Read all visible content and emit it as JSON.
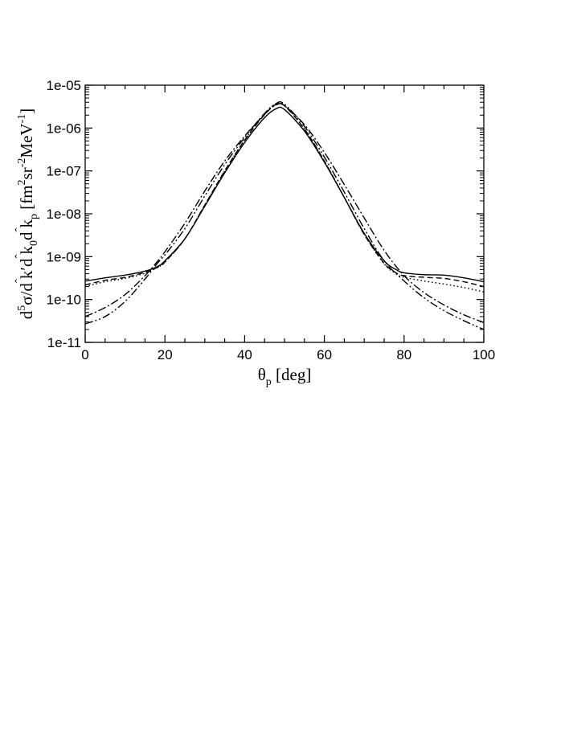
{
  "chart_data": {
    "type": "line",
    "xlabel": {
      "main": "θ",
      "sub": "p",
      "rest": " [deg]"
    },
    "ylabel_parts": [
      {
        "t": "d",
        "s": "n"
      },
      {
        "t": "5",
        "s": "sup"
      },
      {
        "t": "σ/d",
        "s": "n"
      },
      {
        "t": "ˆ",
        "s": "hat"
      },
      {
        "t": "k′d",
        "s": "n"
      },
      {
        "t": "ˆ",
        "s": "hat"
      },
      {
        "t": "k",
        "s": "n"
      },
      {
        "t": "0",
        "s": "sub"
      },
      {
        "t": "d",
        "s": "n"
      },
      {
        "t": "ˆ",
        "s": "hat"
      },
      {
        "t": "k",
        "s": "n"
      },
      {
        "t": "p",
        "s": "sub"
      },
      {
        "t": " [fm",
        "s": "n"
      },
      {
        "t": "2",
        "s": "sup"
      },
      {
        "t": "sr",
        "s": "n"
      },
      {
        "t": "-2",
        "s": "sup"
      },
      {
        "t": "MeV",
        "s": "n"
      },
      {
        "t": "-1",
        "s": "sup"
      },
      {
        "t": "]",
        "s": "n"
      }
    ],
    "xlim": [
      0,
      100
    ],
    "ylim": [
      1e-11,
      1e-05
    ],
    "yscale": "log",
    "x_ticks": [
      "0",
      "20",
      "40",
      "60",
      "80",
      "100"
    ],
    "y_ticks": [
      "1e-11",
      "1e-10",
      "1e-09",
      "1e-08",
      "1e-07",
      "1e-06",
      "1e-05"
    ],
    "grid": false,
    "series": [
      {
        "style": "solid",
        "points": [
          [
            0,
            2.7e-10
          ],
          [
            5,
            3.2e-10
          ],
          [
            10,
            3.7e-10
          ],
          [
            15,
            4.6e-10
          ],
          [
            18,
            5.8e-10
          ],
          [
            20,
            8e-10
          ],
          [
            25,
            2.6e-09
          ],
          [
            30,
            1.5e-08
          ],
          [
            35,
            9e-08
          ],
          [
            40,
            4.6e-07
          ],
          [
            45,
            1.75e-06
          ],
          [
            48,
            2.85e-06
          ],
          [
            50,
            2.7e-06
          ],
          [
            55,
            8.5e-07
          ],
          [
            60,
            1.6e-07
          ],
          [
            65,
            2.4e-08
          ],
          [
            70,
            3.5e-09
          ],
          [
            75,
            8e-10
          ],
          [
            78,
            5e-10
          ],
          [
            80,
            4.2e-10
          ],
          [
            85,
            3.8e-10
          ],
          [
            90,
            3.7e-10
          ],
          [
            95,
            3.2e-10
          ],
          [
            100,
            2.6e-10
          ]
        ]
      },
      {
        "style": "dashed",
        "points": [
          [
            0,
            2.2e-10
          ],
          [
            5,
            2.8e-10
          ],
          [
            10,
            3.3e-10
          ],
          [
            15,
            4.3e-10
          ],
          [
            18,
            5.6e-10
          ],
          [
            20,
            7.5e-10
          ],
          [
            25,
            2.6e-09
          ],
          [
            30,
            1.6e-08
          ],
          [
            35,
            1e-07
          ],
          [
            40,
            5.2e-07
          ],
          [
            45,
            2.05e-06
          ],
          [
            48,
            3.6e-06
          ],
          [
            50,
            3.3e-06
          ],
          [
            55,
            9.5e-07
          ],
          [
            60,
            1.7e-07
          ],
          [
            65,
            2.4e-08
          ],
          [
            70,
            3.3e-09
          ],
          [
            75,
            7e-10
          ],
          [
            78,
            4.2e-10
          ],
          [
            80,
            3.6e-10
          ],
          [
            85,
            3.3e-10
          ],
          [
            90,
            3.1e-10
          ],
          [
            95,
            2.6e-10
          ],
          [
            100,
            2e-10
          ]
        ]
      },
      {
        "style": "dotted",
        "points": [
          [
            0,
            2e-10
          ],
          [
            5,
            2.6e-10
          ],
          [
            10,
            3.1e-10
          ],
          [
            15,
            4.1e-10
          ],
          [
            18,
            5.5e-10
          ],
          [
            20,
            7.4e-10
          ],
          [
            25,
            2.6e-09
          ],
          [
            30,
            1.6e-08
          ],
          [
            35,
            1e-07
          ],
          [
            40,
            5.3e-07
          ],
          [
            45,
            2.1e-06
          ],
          [
            48,
            3.7e-06
          ],
          [
            50,
            3.4e-06
          ],
          [
            55,
            9.6e-07
          ],
          [
            60,
            1.7e-07
          ],
          [
            65,
            2.4e-08
          ],
          [
            70,
            3.3e-09
          ],
          [
            75,
            6.8e-10
          ],
          [
            78,
            4e-10
          ],
          [
            80,
            3.3e-10
          ],
          [
            85,
            2.7e-10
          ],
          [
            90,
            2.3e-10
          ],
          [
            95,
            1.9e-10
          ],
          [
            100,
            1.5e-10
          ]
        ]
      },
      {
        "style": "dashdot",
        "points": [
          [
            0,
            4e-11
          ],
          [
            5,
            6.5e-11
          ],
          [
            10,
            1.3e-10
          ],
          [
            15,
            3.6e-10
          ],
          [
            18,
            7.5e-10
          ],
          [
            20,
            1.3e-09
          ],
          [
            25,
            6e-09
          ],
          [
            30,
            3.4e-08
          ],
          [
            35,
            1.7e-07
          ],
          [
            40,
            6.5e-07
          ],
          [
            45,
            2.1e-06
          ],
          [
            48,
            3.5e-06
          ],
          [
            50,
            3.3e-06
          ],
          [
            55,
            1.2e-06
          ],
          [
            60,
            2.7e-07
          ],
          [
            65,
            4.8e-08
          ],
          [
            70,
            8e-09
          ],
          [
            75,
            1.4e-09
          ],
          [
            80,
            3.6e-10
          ],
          [
            85,
            1.45e-10
          ],
          [
            90,
            7.5e-11
          ],
          [
            95,
            4.4e-11
          ],
          [
            100,
            2.9e-11
          ]
        ]
      },
      {
        "style": "dashdotdot",
        "points": [
          [
            0,
            2.7e-11
          ],
          [
            5,
            4e-11
          ],
          [
            10,
            9e-11
          ],
          [
            15,
            3e-10
          ],
          [
            18,
            6.8e-10
          ],
          [
            20,
            1.1e-09
          ],
          [
            25,
            4.5e-09
          ],
          [
            30,
            2.6e-08
          ],
          [
            35,
            1.4e-07
          ],
          [
            40,
            6e-07
          ],
          [
            45,
            2.2e-06
          ],
          [
            48,
            3.8e-06
          ],
          [
            50,
            3.6e-06
          ],
          [
            55,
            1.1e-06
          ],
          [
            60,
            2.1e-07
          ],
          [
            65,
            3.2e-08
          ],
          [
            70,
            4.5e-09
          ],
          [
            75,
            8e-10
          ],
          [
            80,
            2.7e-10
          ],
          [
            85,
            1.1e-10
          ],
          [
            90,
            5.5e-11
          ],
          [
            95,
            3.2e-11
          ],
          [
            100,
            2e-11
          ]
        ]
      }
    ]
  }
}
